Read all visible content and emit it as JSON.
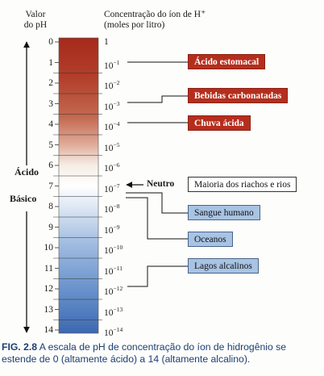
{
  "header": {
    "ph_line1": "Valor",
    "ph_line2": "do pH",
    "conc_line1": "Concentração do íon de H⁺",
    "conc_line2": "(moles por litro)"
  },
  "scale": [
    {
      "ph": "0",
      "base": "1",
      "exp": ""
    },
    {
      "ph": "1",
      "base": "10",
      "exp": "−1"
    },
    {
      "ph": "2",
      "base": "10",
      "exp": "−2"
    },
    {
      "ph": "3",
      "base": "10",
      "exp": "−3"
    },
    {
      "ph": "4",
      "base": "10",
      "exp": "−4"
    },
    {
      "ph": "5",
      "base": "10",
      "exp": "−5"
    },
    {
      "ph": "6",
      "base": "10",
      "exp": "−6"
    },
    {
      "ph": "7",
      "base": "10",
      "exp": "−7"
    },
    {
      "ph": "8",
      "base": "10",
      "exp": "−8"
    },
    {
      "ph": "9",
      "base": "10",
      "exp": "−9"
    },
    {
      "ph": "10",
      "base": "10",
      "exp": "−10"
    },
    {
      "ph": "11",
      "base": "10",
      "exp": "−11"
    },
    {
      "ph": "12",
      "base": "10",
      "exp": "−12"
    },
    {
      "ph": "13",
      "base": "10",
      "exp": "−13"
    },
    {
      "ph": "14",
      "base": "10",
      "exp": "−14"
    }
  ],
  "side_labels": {
    "acid": "Ácido",
    "base": "Básico"
  },
  "neutral": {
    "label": "Neutro",
    "ph": 7,
    "example": "Maioria dos riachos e rios"
  },
  "examples": {
    "acid_stomach": {
      "label": "Ácido estomacal",
      "ph": 1
    },
    "sodas": {
      "label": "Bebidas carbonatadas",
      "ph": 3
    },
    "acid_rain": {
      "label": "Chuva ácida",
      "ph": 4
    },
    "human_blood": {
      "label": "Sangue humano",
      "ph": 7.4
    },
    "oceans": {
      "label": "Oceanos",
      "ph": 8.1
    },
    "alkaline_lakes": {
      "label": "Lagos alcalinos",
      "ph": 12
    }
  },
  "colors": {
    "acid": "#b52e1d",
    "neutral": "#ffffff",
    "base": "#3d68b0",
    "box_base": "#a8c3e3"
  },
  "caption": {
    "fig": "FIG. 2.8",
    "text": "A escala de pH de concentração do íon de hidrogênio se estende de 0 (altamente ácido) a 14 (altamente alcalino)."
  }
}
